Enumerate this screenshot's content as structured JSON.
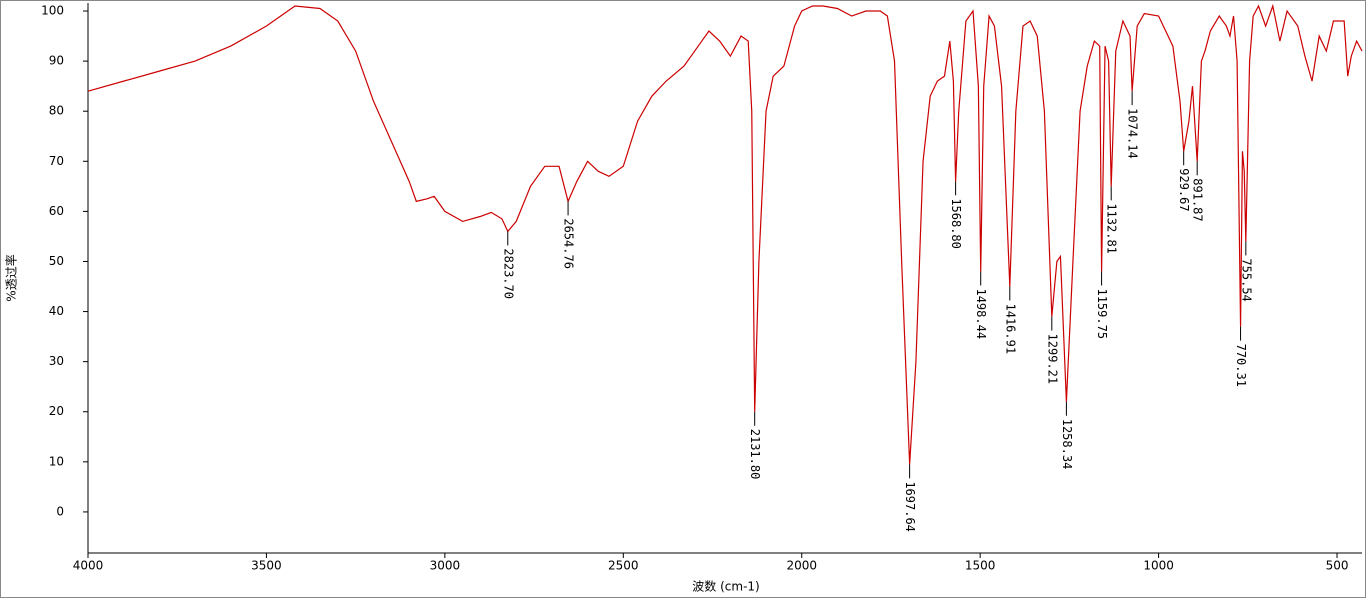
{
  "chart_data": {
    "type": "line",
    "xlabel": "波数 (cm-1)",
    "ylabel": "%透过率",
    "color": "#cc0000",
    "xlim": [
      4000,
      430
    ],
    "ylim": [
      -8.2,
      101.6
    ],
    "xticks": [
      4000,
      3500,
      3000,
      2500,
      2000,
      1500,
      1000,
      500
    ],
    "yticks": [
      0,
      10,
      20,
      30,
      40,
      50,
      60,
      70,
      80,
      90,
      100
    ],
    "x": [
      4000,
      3900,
      3800,
      3700,
      3600,
      3500,
      3420,
      3350,
      3300,
      3250,
      3200,
      3150,
      3100,
      3080,
      3050,
      3030,
      3000,
      2950,
      2900,
      2870,
      2840,
      2823.7,
      2800,
      2760,
      2720,
      2680,
      2654.76,
      2630,
      2600,
      2570,
      2540,
      2500,
      2460,
      2420,
      2380,
      2330,
      2290,
      2260,
      2230,
      2200,
      2170,
      2150,
      2140,
      2131.8,
      2120,
      2100,
      2080,
      2050,
      2020,
      2000,
      1970,
      1940,
      1900,
      1860,
      1820,
      1780,
      1760,
      1740,
      1720,
      1697.64,
      1680,
      1660,
      1640,
      1620,
      1600,
      1585,
      1575,
      1568.8,
      1560,
      1540,
      1520,
      1505,
      1498.44,
      1490,
      1475,
      1460,
      1440,
      1416.91,
      1400,
      1380,
      1360,
      1340,
      1320,
      1299.21,
      1285,
      1275,
      1258.34,
      1240,
      1220,
      1200,
      1180,
      1165,
      1159.75,
      1150,
      1140,
      1132.81,
      1120,
      1100,
      1080,
      1074.14,
      1060,
      1040,
      1000,
      960,
      940,
      929.67,
      915,
      905,
      891.87,
      880,
      870,
      855,
      830,
      810,
      800,
      790,
      780,
      770.31,
      765,
      760,
      755.54,
      745,
      735,
      720,
      700,
      680,
      660,
      640,
      610,
      590,
      570,
      550,
      530,
      510,
      480,
      470,
      460,
      445,
      430
    ],
    "values": [
      84,
      86,
      88,
      90,
      93,
      97,
      101,
      100.5,
      98,
      92,
      82,
      74,
      66,
      62,
      62.5,
      63,
      60,
      58,
      59,
      59.8,
      58.5,
      56,
      58,
      65,
      69,
      69,
      62,
      66,
      70,
      68,
      67,
      69,
      78,
      83,
      86,
      89,
      93,
      96,
      94,
      91,
      95,
      94,
      80,
      20,
      50,
      80,
      87,
      89,
      97,
      100,
      101,
      101,
      100.5,
      99,
      100,
      100,
      99,
      90,
      50,
      9.5,
      30,
      70,
      83,
      86,
      87,
      94,
      86,
      66,
      80,
      98,
      100,
      85,
      48,
      85,
      99,
      97,
      85,
      45,
      80,
      97,
      98,
      95,
      80,
      39,
      50,
      51,
      22,
      50,
      80,
      89,
      94,
      93,
      48,
      93,
      90,
      65,
      92,
      98,
      95,
      84,
      97,
      99.5,
      99,
      93,
      82,
      72,
      78,
      85,
      70,
      90,
      92,
      96,
      99,
      97,
      95,
      99,
      90,
      37,
      72,
      68,
      54,
      90,
      99,
      101,
      97,
      101,
      94,
      100,
      97,
      91,
      86,
      95,
      92,
      98,
      98,
      87,
      91,
      94,
      92
    ],
    "peaks": [
      {
        "x": 2823.7,
        "y": 56,
        "label": "2823.70"
      },
      {
        "x": 2654.76,
        "y": 62,
        "label": "2654.76"
      },
      {
        "x": 2131.8,
        "y": 20,
        "label": "2131.80"
      },
      {
        "x": 1697.64,
        "y": 9.5,
        "label": "1697.64"
      },
      {
        "x": 1568.8,
        "y": 66,
        "label": "1568.80"
      },
      {
        "x": 1498.44,
        "y": 48,
        "label": "1498.44"
      },
      {
        "x": 1416.91,
        "y": 45,
        "label": "1416.91"
      },
      {
        "x": 1299.21,
        "y": 39,
        "label": "1299.21"
      },
      {
        "x": 1258.34,
        "y": 22,
        "label": "1258.34"
      },
      {
        "x": 1159.75,
        "y": 48,
        "label": "1159.75"
      },
      {
        "x": 1132.81,
        "y": 65,
        "label": "1132.81"
      },
      {
        "x": 1074.14,
        "y": 84,
        "label": "1074.14"
      },
      {
        "x": 929.67,
        "y": 72,
        "label": "929.67"
      },
      {
        "x": 891.87,
        "y": 70,
        "label": "891.87"
      },
      {
        "x": 770.31,
        "y": 37,
        "label": "770.31"
      },
      {
        "x": 755.54,
        "y": 54,
        "label": "755.54"
      }
    ]
  }
}
